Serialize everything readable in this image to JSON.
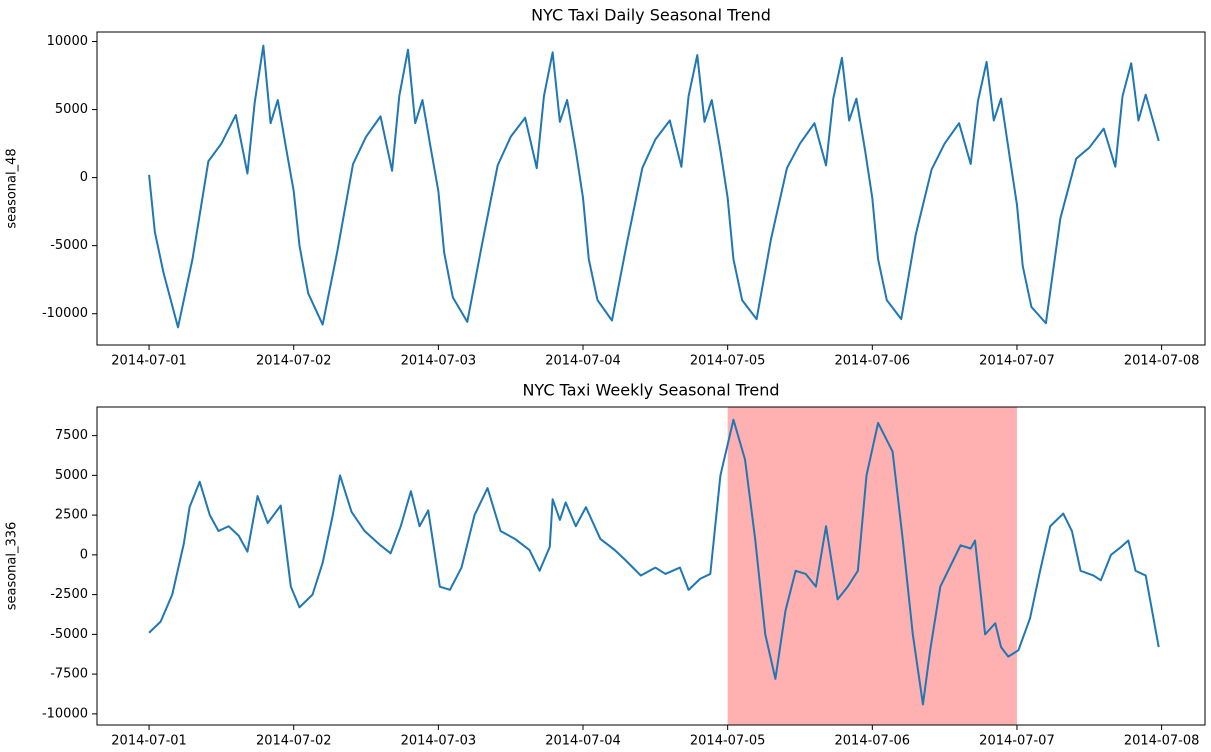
{
  "chart_data": [
    {
      "type": "line",
      "title": "NYC Taxi Daily Seasonal Trend",
      "ylabel": "seasonal_48",
      "color": "#1f77b4",
      "x": [
        0,
        0.04,
        0.1,
        0.2,
        0.3,
        0.41,
        0.5,
        0.6,
        0.68,
        0.73,
        0.79,
        0.84,
        0.89,
        0.95,
        1,
        1.04,
        1.1,
        1.2,
        1.3,
        1.41,
        1.5,
        1.6,
        1.68,
        1.73,
        1.79,
        1.84,
        1.89,
        1.95,
        2,
        2.04,
        2.1,
        2.2,
        2.3,
        2.41,
        2.5,
        2.6,
        2.68,
        2.73,
        2.79,
        2.84,
        2.89,
        2.95,
        3,
        3.04,
        3.1,
        3.2,
        3.3,
        3.41,
        3.5,
        3.6,
        3.68,
        3.73,
        3.79,
        3.84,
        3.89,
        3.95,
        4,
        4.04,
        4.1,
        4.2,
        4.3,
        4.41,
        4.5,
        4.6,
        4.68,
        4.73,
        4.79,
        4.84,
        4.89,
        4.95,
        5,
        5.04,
        5.1,
        5.2,
        5.3,
        5.41,
        5.5,
        5.6,
        5.68,
        5.73,
        5.79,
        5.84,
        5.89,
        5.95,
        6,
        6.04,
        6.1,
        6.2,
        6.3,
        6.41,
        6.5,
        6.6,
        6.68,
        6.73,
        6.79,
        6.84,
        6.89,
        6.98
      ],
      "values": [
        200,
        -4000,
        -7000,
        -11000,
        -6000,
        1200,
        2500,
        4600,
        300,
        5500,
        9700,
        4000,
        5700,
        2000,
        -1000,
        -5000,
        -8500,
        -10800,
        -5500,
        1000,
        3000,
        4500,
        500,
        6000,
        9400,
        4000,
        5700,
        2000,
        -1000,
        -5500,
        -8800,
        -10600,
        -5000,
        900,
        3000,
        4400,
        700,
        6000,
        9200,
        4100,
        5700,
        2000,
        -1500,
        -6000,
        -9000,
        -10500,
        -5000,
        700,
        2800,
        4200,
        800,
        6000,
        9000,
        4100,
        5700,
        2000,
        -1500,
        -6000,
        -9000,
        -10400,
        -4500,
        700,
        2500,
        4000,
        900,
        5800,
        8800,
        4200,
        5800,
        2000,
        -1500,
        -6000,
        -9000,
        -10400,
        -4200,
        600,
        2500,
        4000,
        1000,
        5600,
        8500,
        4200,
        5800,
        1500,
        -2000,
        -6500,
        -9500,
        -10700,
        -3000,
        1400,
        2200,
        3600,
        800,
        6000,
        8400,
        4200,
        6100,
        2700
      ],
      "xlim": [
        -0.36,
        7.3
      ],
      "ylim": [
        -12300,
        10700
      ],
      "xticks": [
        {
          "value": 0,
          "label": "2014-07-01"
        },
        {
          "value": 1,
          "label": "2014-07-02"
        },
        {
          "value": 2,
          "label": "2014-07-03"
        },
        {
          "value": 3,
          "label": "2014-07-04"
        },
        {
          "value": 4,
          "label": "2014-07-05"
        },
        {
          "value": 5,
          "label": "2014-07-06"
        },
        {
          "value": 6,
          "label": "2014-07-07"
        },
        {
          "value": 7,
          "label": "2014-07-08"
        }
      ],
      "yticks": [
        10000,
        5000,
        0,
        -5000,
        -10000
      ]
    },
    {
      "type": "line",
      "title": "NYC Taxi Weekly Seasonal Trend",
      "ylabel": "seasonal_336",
      "color": "#1f77b4",
      "span": [
        4,
        6
      ],
      "span_color": "#ffb0b0",
      "x": [
        0,
        0.08,
        0.16,
        0.24,
        0.28,
        0.35,
        0.42,
        0.48,
        0.55,
        0.62,
        0.68,
        0.75,
        0.82,
        0.91,
        0.98,
        1.04,
        1.13,
        1.2,
        1.27,
        1.32,
        1.4,
        1.49,
        1.6,
        1.67,
        1.74,
        1.81,
        1.87,
        1.93,
        2.01,
        2.08,
        2.16,
        2.25,
        2.34,
        2.43,
        2.53,
        2.63,
        2.7,
        2.77,
        2.79,
        2.84,
        2.88,
        2.95,
        3.02,
        3.12,
        3.22,
        3.29,
        3.4,
        3.5,
        3.57,
        3.67,
        3.73,
        3.81,
        3.88,
        3.95,
        4.04,
        4.12,
        4.19,
        4.26,
        4.33,
        4.4,
        4.47,
        4.54,
        4.61,
        4.68,
        4.76,
        4.83,
        4.9,
        4.96,
        5.04,
        5.14,
        5.21,
        5.28,
        5.35,
        5.4,
        5.47,
        5.54,
        5.61,
        5.68,
        5.71,
        5.78,
        5.85,
        5.89,
        5.94,
        6.01,
        6.09,
        6.16,
        6.23,
        6.32,
        6.38,
        6.44,
        6.53,
        6.58,
        6.65,
        6.72,
        6.77,
        6.82,
        6.89,
        6.98
      ],
      "values": [
        -4900,
        -4200,
        -2500,
        700,
        3000,
        4600,
        2500,
        1500,
        1800,
        1200,
        200,
        3700,
        2000,
        3100,
        -2000,
        -3300,
        -2500,
        -500,
        2500,
        5000,
        2700,
        1500,
        600,
        100,
        1800,
        4000,
        1800,
        2800,
        -2000,
        -2200,
        -800,
        2500,
        4200,
        1500,
        1000,
        300,
        -1000,
        500,
        3500,
        2200,
        3300,
        1800,
        3000,
        1000,
        300,
        -300,
        -1300,
        -800,
        -1200,
        -800,
        -2200,
        -1500,
        -1200,
        5000,
        8500,
        6000,
        1000,
        -5000,
        -7800,
        -3500,
        -1000,
        -1200,
        -2000,
        1800,
        -2800,
        -2000,
        -1000,
        5000,
        8300,
        6500,
        1000,
        -5000,
        -9400,
        -6000,
        -2000,
        -700,
        600,
        400,
        900,
        -5000,
        -4300,
        -5800,
        -6400,
        -6000,
        -4000,
        -1000,
        1800,
        2600,
        1500,
        -1000,
        -1300,
        -1600,
        0,
        500,
        900,
        -1000,
        -1300,
        -5800
      ],
      "xlim": [
        -0.36,
        7.3
      ],
      "ylim": [
        -10700,
        9300
      ],
      "xticks": [
        {
          "value": 0,
          "label": "2014-07-01"
        },
        {
          "value": 1,
          "label": "2014-07-02"
        },
        {
          "value": 2,
          "label": "2014-07-03"
        },
        {
          "value": 3,
          "label": "2014-07-04"
        },
        {
          "value": 4,
          "label": "2014-07-05"
        },
        {
          "value": 5,
          "label": "2014-07-06"
        },
        {
          "value": 6,
          "label": "2014-07-07"
        },
        {
          "value": 7,
          "label": "2014-07-08"
        }
      ],
      "yticks": [
        7500,
        5000,
        2500,
        0,
        -2500,
        -5000,
        -7500,
        -10000
      ]
    }
  ]
}
